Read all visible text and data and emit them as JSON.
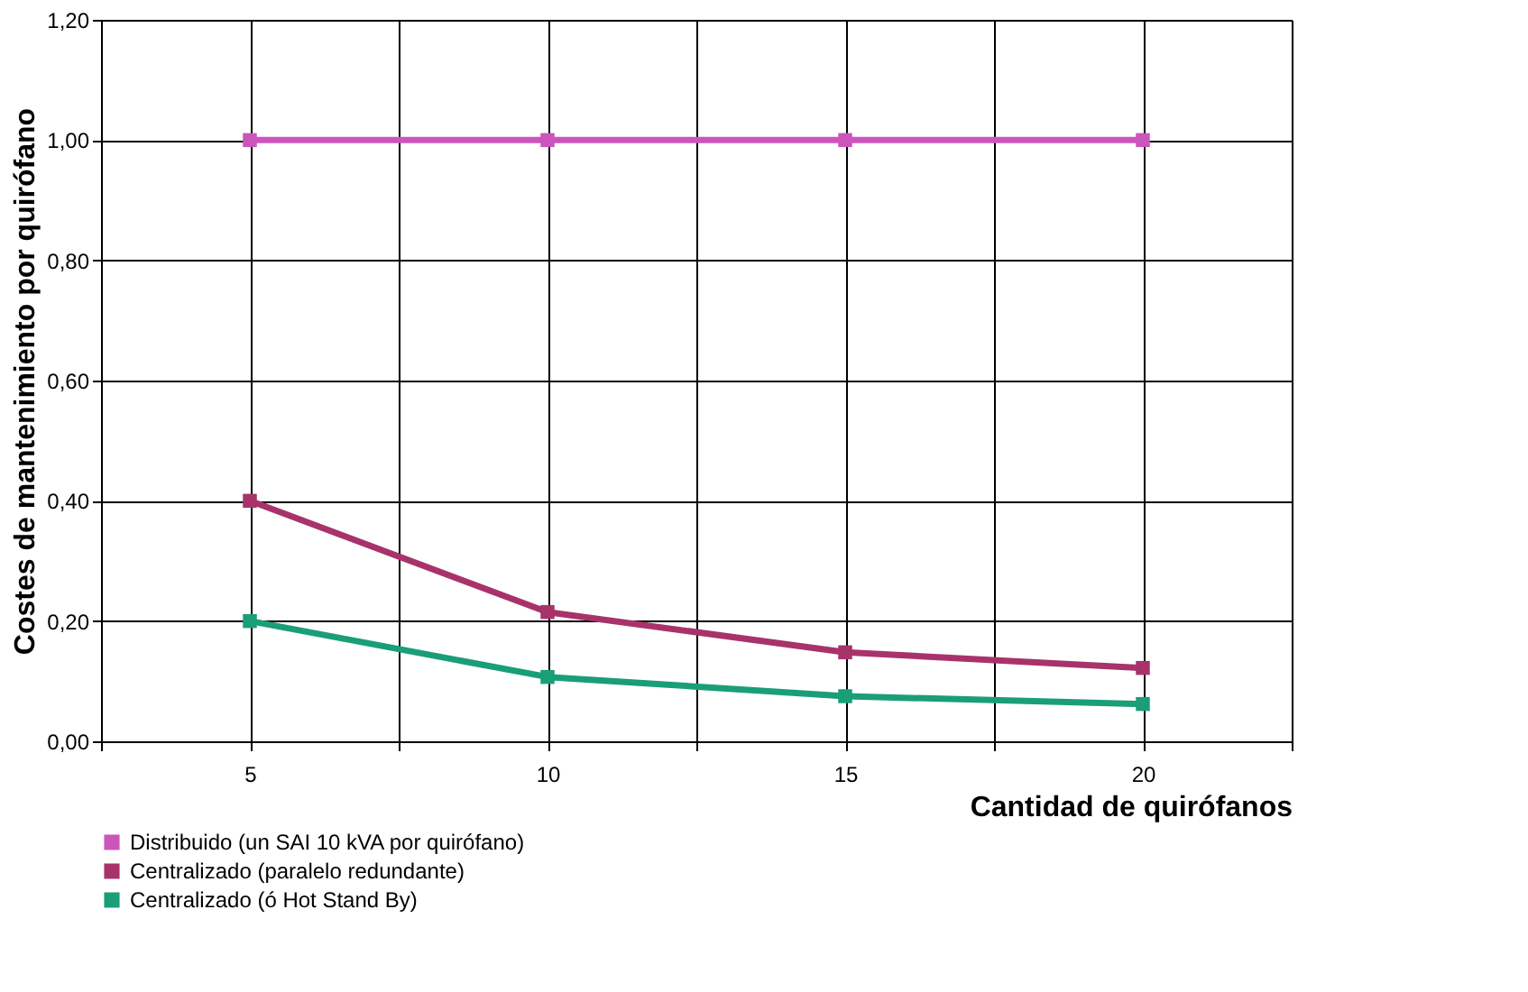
{
  "chart_data": {
    "type": "line",
    "xlabel": "Cantidad de quirófanos",
    "ylabel": "Costes de mantenimiento  por quirófano",
    "x": [
      5,
      10,
      15,
      20
    ],
    "series": [
      {
        "name": "Distribuido (un SAI 10 kVA por quirófano)",
        "color": "#cc55bb",
        "values": [
          1.0,
          1.0,
          1.0,
          1.0
        ]
      },
      {
        "name": "Centralizado (paralelo redundante)",
        "color": "#a8336b",
        "values": [
          0.4,
          0.215,
          0.148,
          0.122
        ]
      },
      {
        "name": "Centralizado (ó Hot Stand By)",
        "color": "#1a9e78",
        "values": [
          0.2,
          0.107,
          0.075,
          0.062
        ]
      }
    ],
    "xlim": [
      2.5,
      22.5
    ],
    "xticks": [
      {
        "value": 2.5,
        "label": null
      },
      5,
      {
        "value": 7.5,
        "label": null
      },
      10,
      {
        "value": 12.5,
        "label": null
      },
      15,
      {
        "value": 17.5,
        "label": null
      },
      20,
      {
        "value": 22.5,
        "label": null
      }
    ],
    "ylim": [
      0,
      1.2
    ],
    "yticks": [
      {
        "value": 0,
        "label": "0,00"
      },
      {
        "value": 0.2,
        "label": "0,20"
      },
      {
        "value": 0.4,
        "label": "0,40"
      },
      {
        "value": 0.6,
        "label": "0,60"
      },
      {
        "value": 0.8,
        "label": "0,80"
      },
      {
        "value": 1.0,
        "label": "1,00"
      },
      {
        "value": 1.2,
        "label": "1,20"
      }
    ],
    "grid": true,
    "legend": "bottom left",
    "marker": "square",
    "line_style": "solid"
  }
}
